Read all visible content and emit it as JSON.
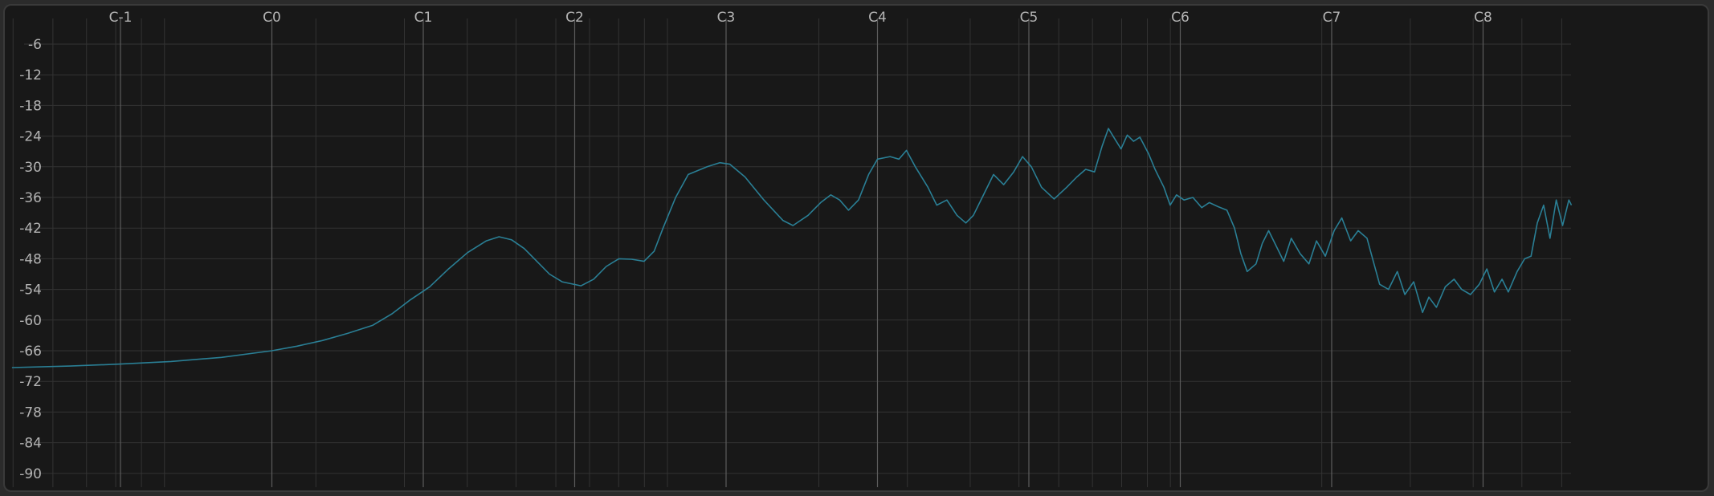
{
  "chart_data": {
    "type": "line",
    "title": "",
    "xlabel": "",
    "ylabel": "",
    "x_scale": "log-frequency",
    "x_tick_labels": [
      "C-1",
      "C0",
      "C1",
      "C2",
      "C3",
      "C4",
      "C5",
      "C6",
      "C7",
      "C8"
    ],
    "x_tick_midi": [
      0,
      12,
      24,
      36,
      48,
      60,
      72,
      84,
      96,
      108
    ],
    "xlim_midi": [
      -8.6,
      115.0
    ],
    "y_ticks": [
      -6,
      -12,
      -18,
      -24,
      -30,
      -36,
      -42,
      -48,
      -54,
      -60,
      -66,
      -72,
      -78,
      -84,
      -90
    ],
    "ylim": [
      -3,
      -93
    ],
    "grid": true,
    "colors": {
      "background": "#181818",
      "frame": "#3a3a3a",
      "grid_major": "#5c5c5c",
      "grid_minor": "#333333",
      "curve": "#2a7f95",
      "text": "#b4b4b4"
    },
    "series": [
      {
        "points_midi_db": [
          [
            -8.6,
            -69.3
          ],
          [
            -4,
            -69.0
          ],
          [
            0,
            -68.6
          ],
          [
            4,
            -68.1
          ],
          [
            8,
            -67.3
          ],
          [
            12,
            -66.0
          ],
          [
            14,
            -65.1
          ],
          [
            16,
            -64.0
          ],
          [
            18,
            -62.6
          ],
          [
            20,
            -61.0
          ],
          [
            21.5,
            -58.8
          ],
          [
            23,
            -56.0
          ],
          [
            24.5,
            -53.5
          ],
          [
            26,
            -50.0
          ],
          [
            27.5,
            -46.8
          ],
          [
            29,
            -44.5
          ],
          [
            30,
            -43.7
          ],
          [
            31,
            -44.3
          ],
          [
            32,
            -46.0
          ],
          [
            33,
            -48.5
          ],
          [
            34,
            -51.0
          ],
          [
            35,
            -52.5
          ],
          [
            36.5,
            -53.3
          ],
          [
            37.5,
            -52.0
          ],
          [
            38.5,
            -49.5
          ],
          [
            39.5,
            -48.0
          ],
          [
            40.5,
            -48.1
          ],
          [
            41.5,
            -48.5
          ],
          [
            42.3,
            -46.5
          ],
          [
            43,
            -42.0
          ],
          [
            44,
            -36.0
          ],
          [
            45,
            -31.5
          ],
          [
            46.5,
            -30.0
          ],
          [
            47.5,
            -29.2
          ],
          [
            48.3,
            -29.5
          ],
          [
            49.5,
            -32.0
          ],
          [
            51,
            -36.5
          ],
          [
            52.5,
            -40.5
          ],
          [
            53.3,
            -41.5
          ],
          [
            54.5,
            -39.5
          ],
          [
            55.5,
            -37.0
          ],
          [
            56.3,
            -35.5
          ],
          [
            57,
            -36.5
          ],
          [
            57.7,
            -38.5
          ],
          [
            58.5,
            -36.5
          ],
          [
            59.3,
            -31.5
          ],
          [
            60,
            -28.5
          ],
          [
            61,
            -28.0
          ],
          [
            61.7,
            -28.5
          ],
          [
            62.3,
            -26.8
          ],
          [
            63,
            -30.0
          ],
          [
            64,
            -34.0
          ],
          [
            64.7,
            -37.5
          ],
          [
            65.5,
            -36.5
          ],
          [
            66.3,
            -39.5
          ],
          [
            67,
            -41.0
          ],
          [
            67.6,
            -39.5
          ],
          [
            68.3,
            -36.0
          ],
          [
            69.2,
            -31.5
          ],
          [
            70,
            -33.5
          ],
          [
            70.8,
            -31.0
          ],
          [
            71.5,
            -28.0
          ],
          [
            72.2,
            -30.0
          ],
          [
            73,
            -34.0
          ],
          [
            74,
            -36.3
          ],
          [
            75,
            -34.0
          ],
          [
            75.8,
            -32.0
          ],
          [
            76.5,
            -30.5
          ],
          [
            77.2,
            -31.0
          ],
          [
            77.8,
            -26.0
          ],
          [
            78.3,
            -22.5
          ],
          [
            78.8,
            -24.5
          ],
          [
            79.3,
            -26.5
          ],
          [
            79.8,
            -23.8
          ],
          [
            80.3,
            -25.0
          ],
          [
            80.8,
            -24.2
          ],
          [
            81.5,
            -27.5
          ],
          [
            82,
            -30.5
          ],
          [
            82.7,
            -34.0
          ],
          [
            83.2,
            -37.5
          ],
          [
            83.7,
            -35.5
          ],
          [
            84.3,
            -36.5
          ],
          [
            85,
            -36.0
          ],
          [
            85.7,
            -38.0
          ],
          [
            86.3,
            -37.0
          ],
          [
            87,
            -37.8
          ],
          [
            87.7,
            -38.5
          ],
          [
            88.3,
            -42.0
          ],
          [
            88.8,
            -47.0
          ],
          [
            89.3,
            -50.5
          ],
          [
            90,
            -49.0
          ],
          [
            90.5,
            -45.0
          ],
          [
            91,
            -42.5
          ],
          [
            91.6,
            -45.5
          ],
          [
            92.2,
            -48.5
          ],
          [
            92.8,
            -44.0
          ],
          [
            93.5,
            -47.0
          ],
          [
            94.2,
            -49.0
          ],
          [
            94.8,
            -44.5
          ],
          [
            95.5,
            -47.5
          ],
          [
            96.2,
            -42.5
          ],
          [
            96.8,
            -40.0
          ],
          [
            97.5,
            -44.5
          ],
          [
            98.1,
            -42.5
          ],
          [
            98.8,
            -44.0
          ],
          [
            99.3,
            -48.5
          ],
          [
            99.8,
            -53.0
          ],
          [
            100.5,
            -54.0
          ],
          [
            101.2,
            -50.5
          ],
          [
            101.8,
            -55.0
          ],
          [
            102.5,
            -52.5
          ],
          [
            103.2,
            -58.5
          ],
          [
            103.7,
            -55.5
          ],
          [
            104.3,
            -57.5
          ],
          [
            105,
            -53.5
          ],
          [
            105.7,
            -52.0
          ],
          [
            106.3,
            -54.0
          ],
          [
            107,
            -55.0
          ],
          [
            107.7,
            -53.0
          ],
          [
            108.3,
            -50.0
          ],
          [
            108.9,
            -54.5
          ],
          [
            109.5,
            -52.0
          ],
          [
            110,
            -54.5
          ],
          [
            110.7,
            -50.5
          ],
          [
            111.3,
            -48.0
          ],
          [
            111.8,
            -47.5
          ],
          [
            112.3,
            -41.0
          ],
          [
            112.8,
            -37.5
          ],
          [
            113.3,
            -44.0
          ],
          [
            113.8,
            -36.5
          ],
          [
            114.3,
            -41.5
          ],
          [
            114.8,
            -36.5
          ],
          [
            115,
            -37.5
          ]
        ]
      }
    ]
  }
}
